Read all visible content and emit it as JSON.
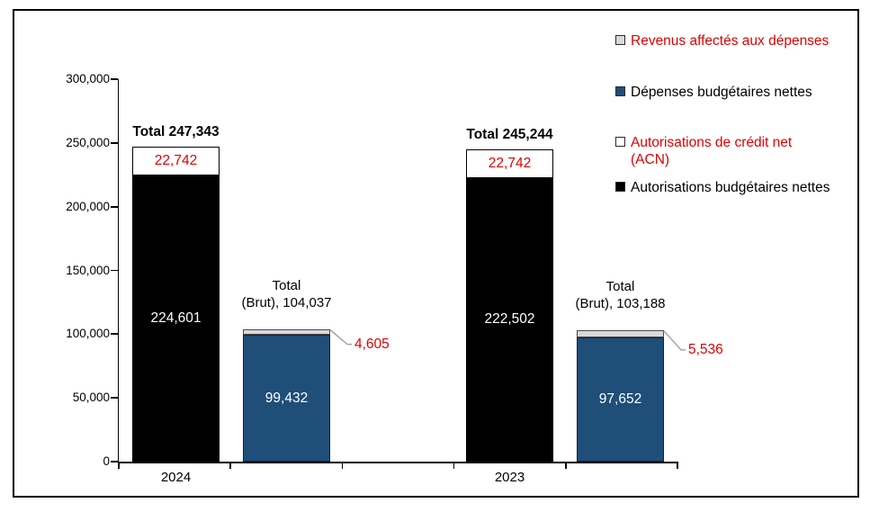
{
  "chart_data": {
    "type": "stacked-bar",
    "title": "",
    "xlabel": "",
    "ylabel": "",
    "ylim": [
      0,
      300000
    ],
    "ytick_step": 50000,
    "ytick_labels": [
      "0",
      "50,000",
      "100,000",
      "150,000",
      "200,000",
      "250,000",
      "300,000"
    ],
    "grid": false,
    "categories": [
      "2024",
      "2023"
    ],
    "groups": [
      {
        "year": "2024",
        "gross_total": 247343,
        "gross_total_label": "Total 247,343",
        "acn": {
          "value": 22742,
          "label": "22,742"
        },
        "net_auth": {
          "value": 224601,
          "label": "224,601"
        },
        "brut_total": 104037,
        "brut_label_line1": "Total",
        "brut_label_line2": "(Brut), 104,037",
        "revenues": {
          "value": 4605,
          "label": "4,605"
        },
        "net_exp": {
          "value": 99432,
          "label": "99,432"
        }
      },
      {
        "year": "2023",
        "gross_total": 245244,
        "gross_total_label": "Total 245,244",
        "acn": {
          "value": 22742,
          "label": "22,742"
        },
        "net_auth": {
          "value": 222502,
          "label": "222,502"
        },
        "brut_total": 103188,
        "brut_label_line1": "Total",
        "brut_label_line2": "(Brut), 103,188",
        "revenues": {
          "value": 5536,
          "label": "5,536"
        },
        "net_exp": {
          "value": 97652,
          "label": "97,652"
        }
      }
    ],
    "legend_position": "right",
    "colors": {
      "bar_black": "#000000",
      "acn_white": "#FFFFFF",
      "net_exp_blue": "#1F4E79",
      "revenues_gray": "#D9D9D9",
      "accent_red": "#E00000",
      "leader_line": "#A6A6A6"
    }
  },
  "legend": {
    "items": [
      {
        "label": "Revenus affectés aux dépenses",
        "swatch": "#D9D9D9",
        "text_color": "#E00000"
      },
      {
        "label": "Dépenses budgétaires nettes",
        "swatch": "#1F4E79",
        "text_color": "#000000"
      },
      {
        "label": "Autorisations de crédit net (ACN)",
        "swatch": "#FFFFFF",
        "text_color": "#E00000"
      },
      {
        "label": "Autorisations budgétaires nettes",
        "swatch": "#000000",
        "text_color": "#000000"
      }
    ]
  }
}
